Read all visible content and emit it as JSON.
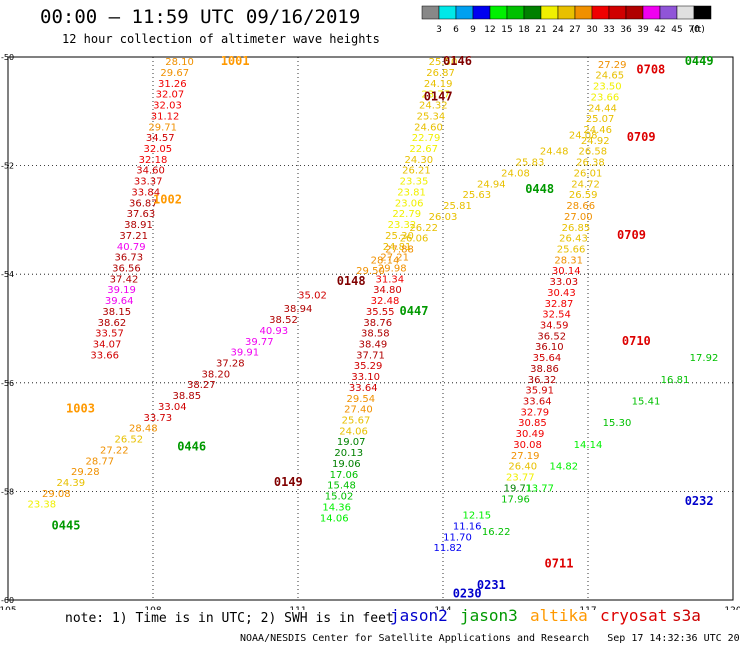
{
  "title": "00:00 – 11:59 UTC 09/16/2019",
  "subtitle": "12 hour collection of altimeter wave heights",
  "colorbar": {
    "unit": "(ft)",
    "colors": [
      "#888888",
      "#00e8e8",
      "#00a0f0",
      "#0000f0",
      "#00f000",
      "#00c000",
      "#008000",
      "#f0f000",
      "#e8c000",
      "#f09000",
      "#f00000",
      "#d00000",
      "#b00000",
      "#f000f0",
      "#9055d8",
      "#e0e0e0",
      "#000000"
    ],
    "tick_labels": [
      "3",
      "6",
      "9",
      "12",
      "15",
      "18",
      "21",
      "24",
      "27",
      "30",
      "33",
      "36",
      "39",
      "42",
      "45",
      "70"
    ]
  },
  "footer_note": "note: 1) Time is in UTC; 2) SWH is in feet",
  "footer_credit": "NOAA/NESDIS Center for Satellite Applications and Research   Sep 17 14:32:36 UTC 2019",
  "satellites": [
    {
      "name": "jason2",
      "color": "#0000cc"
    },
    {
      "name": "jason3",
      "color": "#009900"
    },
    {
      "name": "altika",
      "color": "#ff9900"
    },
    {
      "name": "cryosat",
      "color": "#dd0000"
    },
    {
      "name": "s3a",
      "color": "#cc0000"
    }
  ],
  "chart_data": {
    "type": "scatter",
    "x_ticks": [
      105,
      108,
      111,
      114,
      117,
      120
    ],
    "y_ticks": [
      -50,
      -52,
      -54,
      -56,
      -58,
      -60
    ],
    "xlim": [
      105,
      120
    ],
    "ylim": [
      -60,
      -50
    ],
    "grid": true,
    "units": "ft",
    "track_labels": [
      {
        "text": "1001",
        "x": 109.7,
        "y": -50.15,
        "color": "#ff9900"
      },
      {
        "text": "1002",
        "x": 108.3,
        "y": -52.7,
        "color": "#ff9900"
      },
      {
        "text": "1003",
        "x": 106.5,
        "y": -56.55,
        "color": "#ff9900"
      },
      {
        "text": "0445",
        "x": 106.2,
        "y": -58.7,
        "color": "#009900"
      },
      {
        "text": "0446",
        "x": 108.8,
        "y": -57.25,
        "color": "#009900"
      },
      {
        "text": "0149",
        "x": 110.8,
        "y": -57.9,
        "color": "#800000"
      },
      {
        "text": "0146",
        "x": 114.3,
        "y": -50.15,
        "color": "#800000"
      },
      {
        "text": "0147",
        "x": 113.9,
        "y": -50.8,
        "color": "#800000"
      },
      {
        "text": "0148",
        "x": 112.1,
        "y": -54.2,
        "color": "#800000"
      },
      {
        "text": "0447",
        "x": 113.4,
        "y": -54.75,
        "color": "#009900"
      },
      {
        "text": "0448",
        "x": 116.0,
        "y": -52.5,
        "color": "#009900"
      },
      {
        "text": "0708",
        "x": 118.3,
        "y": -50.3,
        "color": "#dd0000"
      },
      {
        "text": "0449",
        "x": 119.3,
        "y": -50.15,
        "color": "#009900"
      },
      {
        "text": "0709",
        "x": 118.1,
        "y": -51.55,
        "color": "#dd0000"
      },
      {
        "text": "0709",
        "x": 117.9,
        "y": -53.35,
        "color": "#dd0000"
      },
      {
        "text": "0710",
        "x": 118.0,
        "y": -55.3,
        "color": "#dd0000"
      },
      {
        "text": "0711",
        "x": 116.4,
        "y": -59.4,
        "color": "#dd0000"
      },
      {
        "text": "0230",
        "x": 114.5,
        "y": -59.95,
        "color": "#0000cc"
      },
      {
        "text": "0231",
        "x": 115.0,
        "y": -59.8,
        "color": "#0000cc"
      },
      {
        "text": "0232",
        "x": 119.3,
        "y": -58.25,
        "color": "#0000cc"
      }
    ],
    "points": [
      {
        "x": 108.55,
        "y": -50.15,
        "v": "28.10"
      },
      {
        "x": 108.45,
        "y": -50.35,
        "v": "29.67"
      },
      {
        "x": 108.4,
        "y": -50.55,
        "v": "31.26"
      },
      {
        "x": 108.35,
        "y": -50.75,
        "v": "32.07"
      },
      {
        "x": 108.3,
        "y": -50.95,
        "v": "32.03"
      },
      {
        "x": 108.25,
        "y": -51.15,
        "v": "31.12"
      },
      {
        "x": 108.2,
        "y": -51.35,
        "v": "29.71"
      },
      {
        "x": 108.15,
        "y": -51.55,
        "v": "34.57"
      },
      {
        "x": 108.1,
        "y": -51.75,
        "v": "32.05"
      },
      {
        "x": 108.0,
        "y": -51.95,
        "v": "32.18"
      },
      {
        "x": 107.95,
        "y": -52.15,
        "v": "34.60"
      },
      {
        "x": 107.9,
        "y": -52.35,
        "v": "33.37"
      },
      {
        "x": 107.85,
        "y": -52.55,
        "v": "33.84"
      },
      {
        "x": 107.8,
        "y": -52.75,
        "v": "36.87"
      },
      {
        "x": 107.75,
        "y": -52.95,
        "v": "37.63"
      },
      {
        "x": 107.7,
        "y": -53.15,
        "v": "38.91"
      },
      {
        "x": 107.6,
        "y": -53.35,
        "v": "37.21"
      },
      {
        "x": 107.55,
        "y": -53.55,
        "v": "40.79"
      },
      {
        "x": 107.5,
        "y": -53.75,
        "v": "36.73"
      },
      {
        "x": 107.45,
        "y": -53.95,
        "v": "36.56"
      },
      {
        "x": 107.4,
        "y": -54.15,
        "v": "37.42"
      },
      {
        "x": 107.35,
        "y": -54.35,
        "v": "39.19"
      },
      {
        "x": 107.3,
        "y": -54.55,
        "v": "39.64"
      },
      {
        "x": 107.25,
        "y": -54.75,
        "v": "38.15"
      },
      {
        "x": 107.15,
        "y": -54.95,
        "v": "38.62"
      },
      {
        "x": 107.1,
        "y": -55.15,
        "v": "33.57"
      },
      {
        "x": 107.05,
        "y": -55.35,
        "v": "34.07"
      },
      {
        "x": 107.0,
        "y": -55.55,
        "v": "33.66"
      },
      {
        "x": 114.0,
        "y": -50.15,
        "v": "25.50"
      },
      {
        "x": 113.95,
        "y": -50.35,
        "v": "26.87"
      },
      {
        "x": 113.9,
        "y": -50.55,
        "v": "24.19"
      },
      {
        "x": 113.85,
        "y": -50.75,
        "v": "23.77"
      },
      {
        "x": 113.8,
        "y": -50.95,
        "v": "24.32"
      },
      {
        "x": 113.75,
        "y": -51.15,
        "v": "25.34"
      },
      {
        "x": 113.7,
        "y": -51.35,
        "v": "24.60"
      },
      {
        "x": 113.65,
        "y": -51.55,
        "v": "22.79"
      },
      {
        "x": 113.6,
        "y": -51.75,
        "v": "22.67"
      },
      {
        "x": 113.5,
        "y": -51.95,
        "v": "24.30"
      },
      {
        "x": 113.45,
        "y": -52.15,
        "v": "26.21"
      },
      {
        "x": 113.4,
        "y": -52.35,
        "v": "23.35"
      },
      {
        "x": 113.35,
        "y": -52.55,
        "v": "23.81"
      },
      {
        "x": 113.3,
        "y": -52.75,
        "v": "23.06"
      },
      {
        "x": 113.25,
        "y": -52.95,
        "v": "22.79"
      },
      {
        "x": 113.15,
        "y": -53.15,
        "v": "23.32"
      },
      {
        "x": 113.1,
        "y": -53.35,
        "v": "25.30"
      },
      {
        "x": 113.05,
        "y": -53.55,
        "v": "24.81"
      },
      {
        "x": 113.0,
        "y": -53.75,
        "v": "27.21"
      },
      {
        "x": 112.95,
        "y": -53.95,
        "v": "29.98"
      },
      {
        "x": 112.9,
        "y": -54.15,
        "v": "31.34"
      },
      {
        "x": 112.85,
        "y": -54.35,
        "v": "34.80"
      },
      {
        "x": 112.8,
        "y": -54.55,
        "v": "32.48"
      },
      {
        "x": 112.7,
        "y": -54.75,
        "v": "35.55"
      },
      {
        "x": 112.65,
        "y": -54.95,
        "v": "38.76"
      },
      {
        "x": 112.6,
        "y": -55.15,
        "v": "38.58"
      },
      {
        "x": 112.55,
        "y": -55.35,
        "v": "38.49"
      },
      {
        "x": 112.5,
        "y": -55.55,
        "v": "37.71"
      },
      {
        "x": 112.45,
        "y": -55.75,
        "v": "35.29"
      },
      {
        "x": 112.4,
        "y": -55.95,
        "v": "33.10"
      },
      {
        "x": 112.35,
        "y": -56.15,
        "v": "33.64"
      },
      {
        "x": 112.3,
        "y": -56.35,
        "v": "29.54"
      },
      {
        "x": 112.25,
        "y": -56.55,
        "v": "27.40"
      },
      {
        "x": 112.2,
        "y": -56.75,
        "v": "25.67"
      },
      {
        "x": 112.15,
        "y": -56.95,
        "v": "24.06"
      },
      {
        "x": 112.1,
        "y": -57.15,
        "v": "19.07"
      },
      {
        "x": 112.05,
        "y": -57.35,
        "v": "20.13"
      },
      {
        "x": 112.0,
        "y": -57.55,
        "v": "19.06"
      },
      {
        "x": 111.95,
        "y": -57.75,
        "v": "17.06"
      },
      {
        "x": 111.9,
        "y": -57.95,
        "v": "15.48"
      },
      {
        "x": 111.85,
        "y": -58.15,
        "v": "15.02"
      },
      {
        "x": 111.8,
        "y": -58.35,
        "v": "14.36"
      },
      {
        "x": 111.75,
        "y": -58.55,
        "v": "14.06"
      },
      {
        "x": 111.3,
        "y": -54.45,
        "v": "35.02"
      },
      {
        "x": 111.0,
        "y": -54.7,
        "v": "38.94"
      },
      {
        "x": 110.7,
        "y": -54.9,
        "v": "38.52"
      },
      {
        "x": 110.5,
        "y": -55.1,
        "v": "40.93"
      },
      {
        "x": 110.2,
        "y": -55.3,
        "v": "39.77"
      },
      {
        "x": 109.9,
        "y": -55.5,
        "v": "39.91"
      },
      {
        "x": 109.6,
        "y": -55.7,
        "v": "37.28"
      },
      {
        "x": 109.3,
        "y": -55.9,
        "v": "38.20"
      },
      {
        "x": 109.0,
        "y": -56.1,
        "v": "38.27"
      },
      {
        "x": 108.7,
        "y": -56.3,
        "v": "38.85"
      },
      {
        "x": 108.4,
        "y": -56.5,
        "v": "33.04"
      },
      {
        "x": 108.1,
        "y": -56.7,
        "v": "33.73"
      },
      {
        "x": 107.8,
        "y": -56.9,
        "v": "28.48"
      },
      {
        "x": 107.5,
        "y": -57.1,
        "v": "26.52"
      },
      {
        "x": 107.2,
        "y": -57.3,
        "v": "27.22"
      },
      {
        "x": 106.9,
        "y": -57.5,
        "v": "28.77"
      },
      {
        "x": 106.6,
        "y": -57.7,
        "v": "29.28"
      },
      {
        "x": 106.3,
        "y": -57.9,
        "v": "24.39"
      },
      {
        "x": 106.0,
        "y": -58.1,
        "v": "29.08"
      },
      {
        "x": 105.7,
        "y": -58.3,
        "v": "23.38"
      },
      {
        "x": 117.5,
        "y": -50.2,
        "v": "27.29"
      },
      {
        "x": 117.45,
        "y": -50.4,
        "v": "24.65"
      },
      {
        "x": 117.4,
        "y": -50.6,
        "v": "23.50"
      },
      {
        "x": 117.35,
        "y": -50.8,
        "v": "23.66"
      },
      {
        "x": 117.3,
        "y": -51.0,
        "v": "24.44"
      },
      {
        "x": 117.25,
        "y": -51.2,
        "v": "25.07"
      },
      {
        "x": 117.2,
        "y": -51.4,
        "v": "24.46"
      },
      {
        "x": 117.15,
        "y": -51.6,
        "v": "24.92"
      },
      {
        "x": 117.1,
        "y": -51.8,
        "v": "26.58"
      },
      {
        "x": 117.05,
        "y": -52.0,
        "v": "26.38"
      },
      {
        "x": 117.0,
        "y": -52.2,
        "v": "26.01"
      },
      {
        "x": 116.95,
        "y": -52.4,
        "v": "24.72"
      },
      {
        "x": 116.9,
        "y": -52.6,
        "v": "26.59"
      },
      {
        "x": 116.85,
        "y": -52.8,
        "v": "28.66"
      },
      {
        "x": 116.8,
        "y": -53.0,
        "v": "27.00"
      },
      {
        "x": 116.75,
        "y": -53.2,
        "v": "26.85"
      },
      {
        "x": 116.7,
        "y": -53.4,
        "v": "26.43"
      },
      {
        "x": 116.65,
        "y": -53.6,
        "v": "25.66"
      },
      {
        "x": 116.6,
        "y": -53.8,
        "v": "28.31"
      },
      {
        "x": 116.55,
        "y": -54.0,
        "v": "30.14"
      },
      {
        "x": 116.5,
        "y": -54.2,
        "v": "33.03"
      },
      {
        "x": 116.45,
        "y": -54.4,
        "v": "30.43"
      },
      {
        "x": 116.4,
        "y": -54.6,
        "v": "32.87"
      },
      {
        "x": 116.35,
        "y": -54.8,
        "v": "32.54"
      },
      {
        "x": 116.3,
        "y": -55.0,
        "v": "34.59"
      },
      {
        "x": 116.25,
        "y": -55.2,
        "v": "36.52"
      },
      {
        "x": 116.2,
        "y": -55.4,
        "v": "36.10"
      },
      {
        "x": 116.15,
        "y": -55.6,
        "v": "35.64"
      },
      {
        "x": 116.1,
        "y": -55.8,
        "v": "38.86"
      },
      {
        "x": 116.05,
        "y": -56.0,
        "v": "36.32"
      },
      {
        "x": 116.0,
        "y": -56.2,
        "v": "35.91"
      },
      {
        "x": 115.95,
        "y": -56.4,
        "v": "33.64"
      },
      {
        "x": 115.9,
        "y": -56.6,
        "v": "32.79"
      },
      {
        "x": 115.85,
        "y": -56.8,
        "v": "30.85"
      },
      {
        "x": 115.8,
        "y": -57.0,
        "v": "30.49"
      },
      {
        "x": 115.75,
        "y": -57.2,
        "v": "30.08"
      },
      {
        "x": 115.7,
        "y": -57.4,
        "v": "27.19"
      },
      {
        "x": 115.65,
        "y": -57.6,
        "v": "26.40"
      },
      {
        "x": 115.6,
        "y": -57.8,
        "v": "23.77"
      },
      {
        "x": 115.55,
        "y": -58.0,
        "v": "19.71"
      },
      {
        "x": 115.5,
        "y": -58.2,
        "v": "17.96"
      },
      {
        "x": 116.9,
        "y": -51.5,
        "v": "24.08"
      },
      {
        "x": 116.3,
        "y": -51.8,
        "v": "24.48"
      },
      {
        "x": 115.8,
        "y": -52.0,
        "v": "25.83"
      },
      {
        "x": 115.5,
        "y": -52.2,
        "v": "24.08"
      },
      {
        "x": 115.0,
        "y": -52.4,
        "v": "24.94"
      },
      {
        "x": 114.7,
        "y": -52.6,
        "v": "25.63"
      },
      {
        "x": 114.3,
        "y": -52.8,
        "v": "25.81"
      },
      {
        "x": 114.0,
        "y": -53.0,
        "v": "26.03"
      },
      {
        "x": 113.6,
        "y": -53.2,
        "v": "26.22"
      },
      {
        "x": 113.4,
        "y": -53.4,
        "v": "26.06"
      },
      {
        "x": 113.1,
        "y": -53.6,
        "v": "27.88"
      },
      {
        "x": 112.8,
        "y": -53.8,
        "v": "28.14"
      },
      {
        "x": 112.5,
        "y": -54.0,
        "v": "29.50"
      },
      {
        "x": 114.7,
        "y": -58.5,
        "v": "12.15"
      },
      {
        "x": 114.5,
        "y": -58.7,
        "v": "11.16"
      },
      {
        "x": 114.3,
        "y": -58.9,
        "v": "11.70"
      },
      {
        "x": 114.1,
        "y": -59.1,
        "v": "11.82"
      },
      {
        "x": 115.1,
        "y": -58.8,
        "v": "16.22"
      },
      {
        "x": 116.0,
        "y": -58.0,
        "v": "13.77"
      },
      {
        "x": 116.5,
        "y": -57.6,
        "v": "14.82"
      },
      {
        "x": 117.0,
        "y": -57.2,
        "v": "14.14"
      },
      {
        "x": 117.6,
        "y": -56.8,
        "v": "15.30"
      },
      {
        "x": 118.2,
        "y": -56.4,
        "v": "15.41"
      },
      {
        "x": 118.8,
        "y": -56.0,
        "v": "16.81"
      },
      {
        "x": 119.4,
        "y": -55.6,
        "v": "17.92"
      }
    ]
  }
}
